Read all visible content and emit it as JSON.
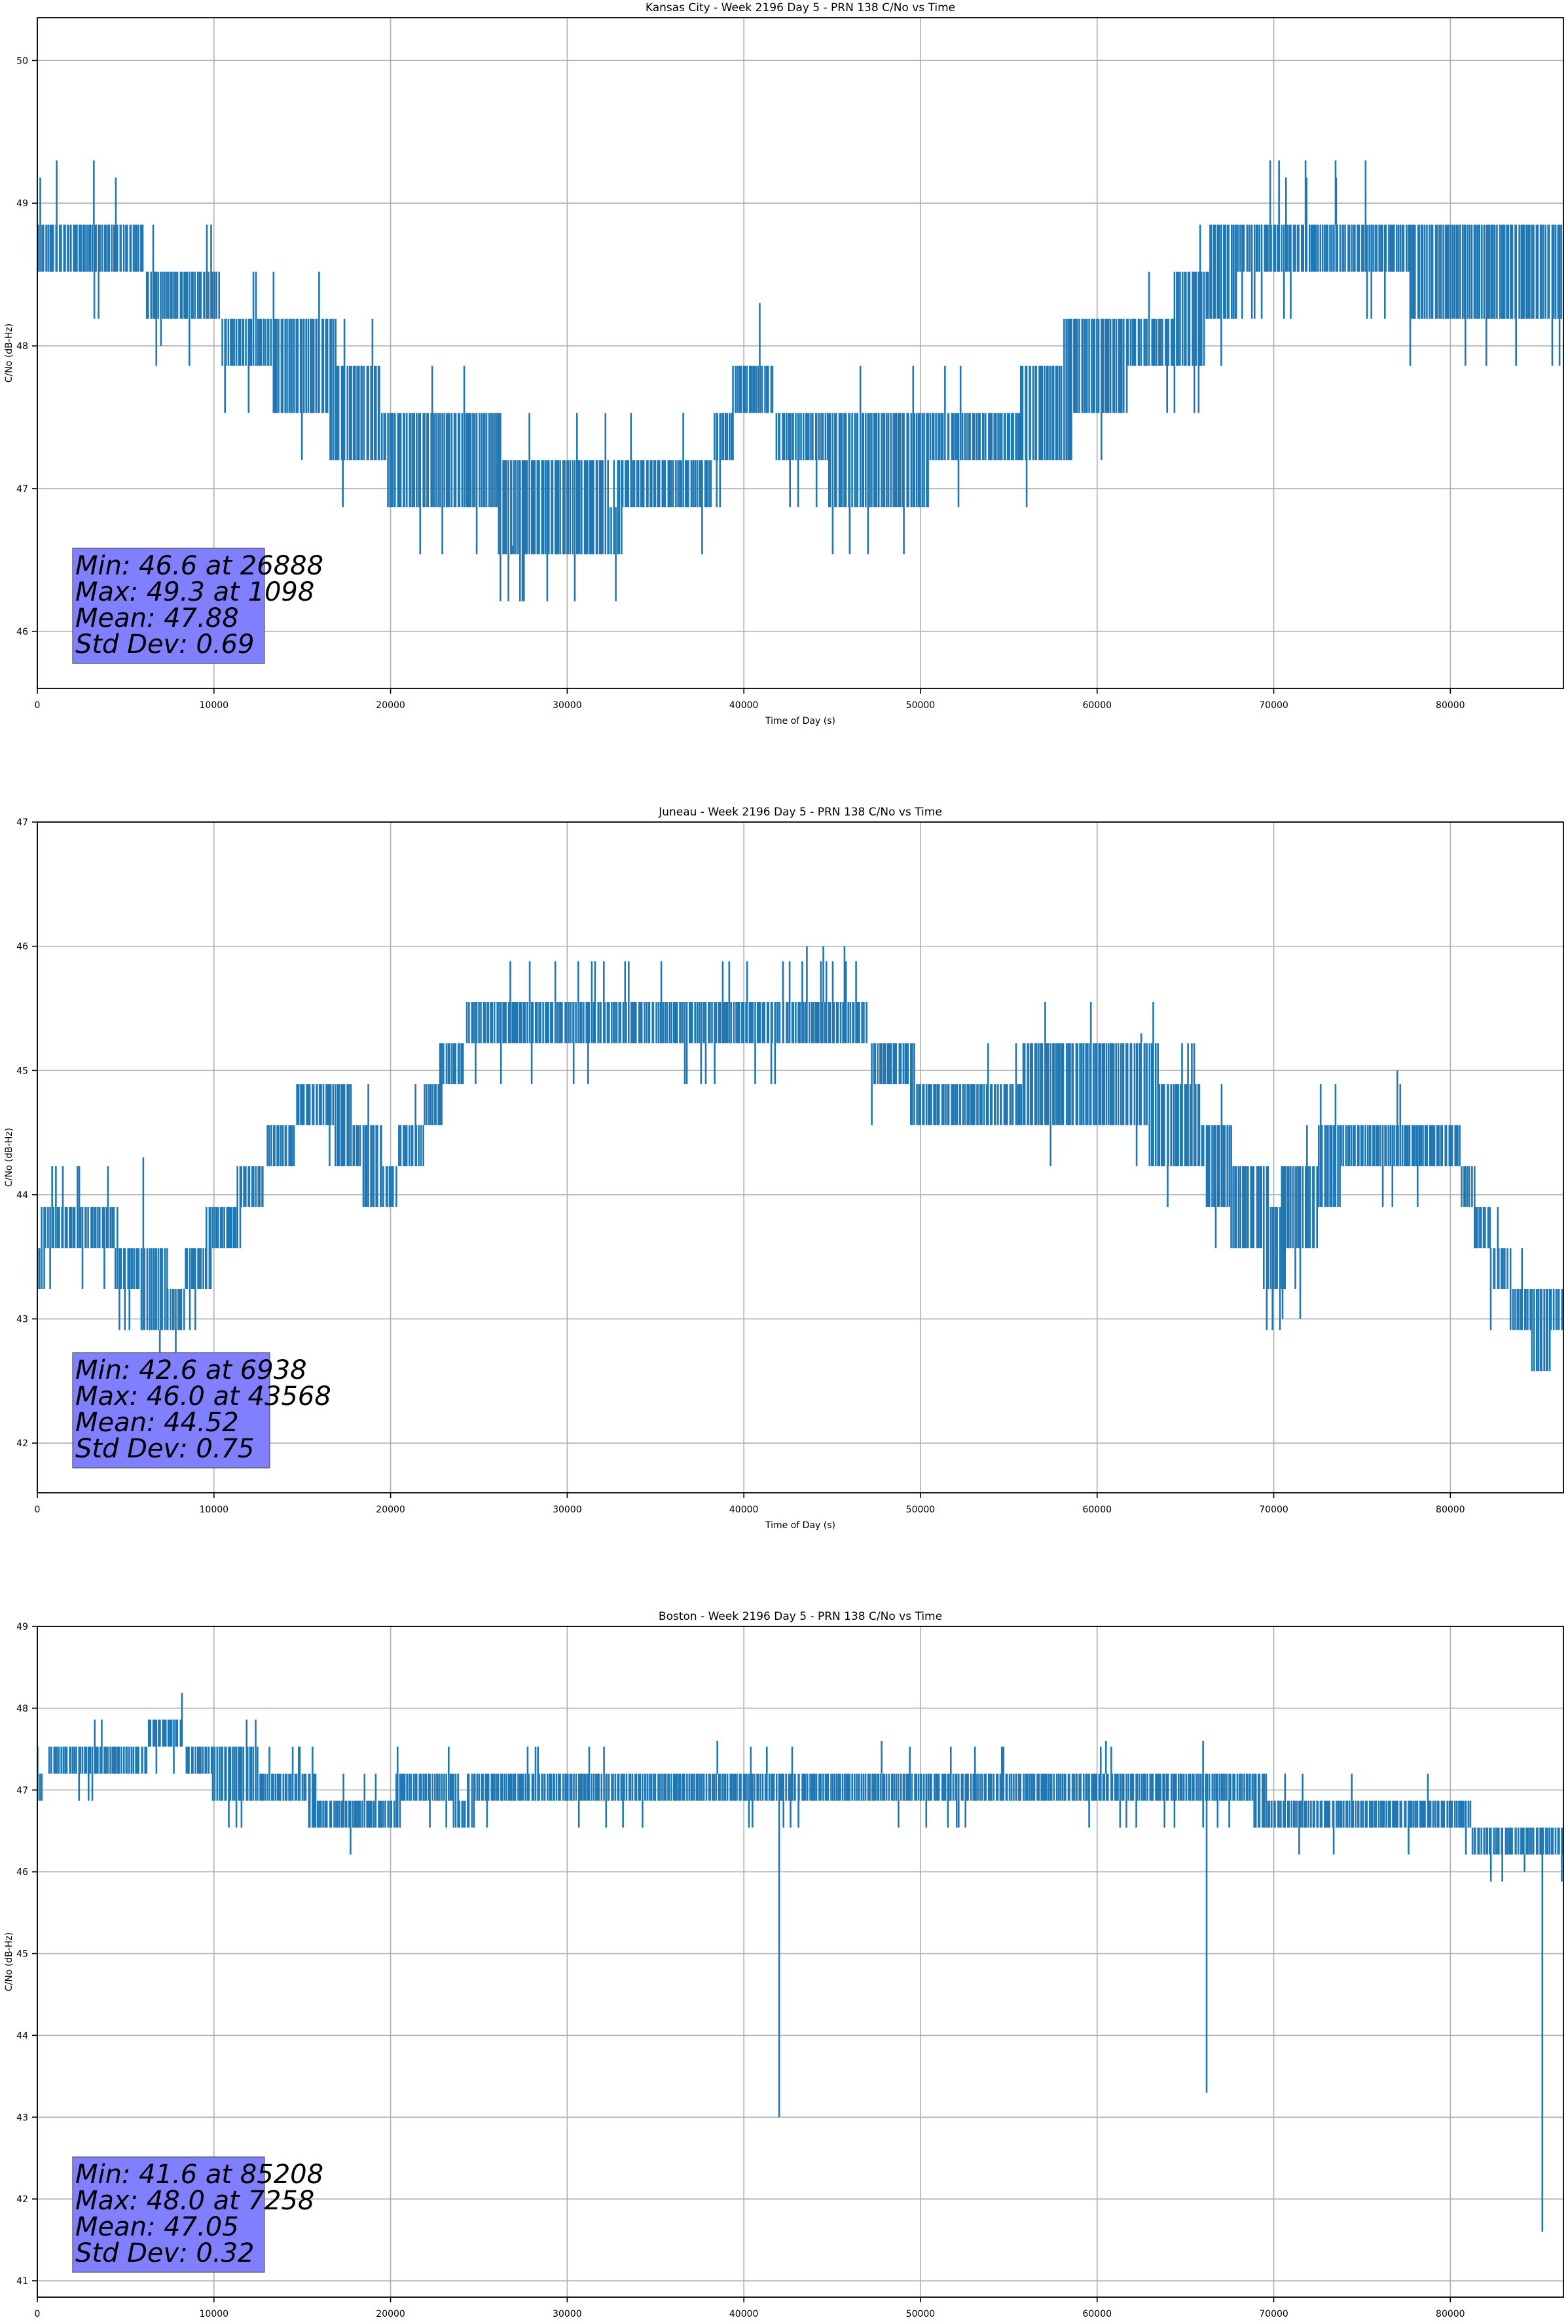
{
  "chart_data": [
    {
      "type": "line",
      "title": "Kansas City - Week 2196 Day 5 - PRN 138 C/No vs Time",
      "xlabel": "Time of Day (s)",
      "ylabel": "C/No (dB-Hz)",
      "xlim": [
        0,
        86400
      ],
      "ylim": [
        45.6,
        50.3
      ],
      "xticks": [
        0,
        10000,
        20000,
        30000,
        40000,
        50000,
        60000,
        70000,
        80000
      ],
      "yticks": [
        46,
        47,
        48,
        49,
        50
      ],
      "grid": true,
      "color": "#1f77b4",
      "series_profile": {
        "x": [
          0,
          4000,
          6500,
          9000,
          10500,
          14000,
          17000,
          20000,
          23000,
          27000,
          30000,
          32500,
          35000,
          38000,
          40500,
          42000,
          45000,
          50000,
          55000,
          58000,
          61000,
          64000,
          66000,
          67500,
          70000,
          75000,
          78000,
          82000,
          86400
        ],
        "low": [
          48.6,
          48.6,
          48.3,
          48.3,
          48.0,
          47.6,
          47.3,
          47.0,
          47.0,
          46.6,
          46.6,
          46.6,
          47.0,
          47.0,
          47.6,
          47.3,
          47.0,
          47.0,
          47.3,
          47.3,
          47.6,
          48.0,
          48.0,
          48.3,
          48.6,
          48.6,
          48.3,
          48.3,
          48.3
        ],
        "high": [
          49.0,
          49.0,
          48.6,
          48.6,
          48.3,
          48.3,
          48.0,
          47.6,
          47.6,
          47.3,
          47.3,
          47.0,
          47.3,
          47.3,
          48.0,
          47.6,
          47.6,
          47.6,
          47.6,
          48.0,
          48.3,
          48.3,
          48.6,
          49.0,
          49.0,
          49.0,
          49.0,
          49.0,
          49.0
        ]
      },
      "spikes": [
        {
          "x": 1098,
          "y": 49.3
        },
        {
          "x": 3200,
          "y": 49.3
        },
        {
          "x": 40900,
          "y": 48.3
        },
        {
          "x": 69800,
          "y": 49.3
        },
        {
          "x": 70300,
          "y": 49.3
        },
        {
          "x": 71800,
          "y": 49.3
        },
        {
          "x": 73500,
          "y": 49.3
        },
        {
          "x": 75200,
          "y": 49.3
        }
      ],
      "dips": [
        {
          "x": 7000,
          "y": 48.0
        },
        {
          "x": 26888,
          "y": 46.6
        }
      ],
      "stats_box": [
        "Min: 46.6 at 26888",
        "Max: 49.3 at 1098",
        "Mean: 47.88",
        "Std Dev: 0.69"
      ]
    },
    {
      "type": "line",
      "title": "Juneau - Week 2196 Day 5 - PRN 138 C/No vs Time",
      "xlabel": "Time of Day (s)",
      "ylabel": "C/No (dB-Hz)",
      "xlim": [
        0,
        86400
      ],
      "ylim": [
        41.6,
        47.0
      ],
      "xticks": [
        0,
        10000,
        20000,
        30000,
        40000,
        50000,
        60000,
        70000,
        80000
      ],
      "yticks": [
        42,
        43,
        44,
        45,
        46,
        47
      ],
      "grid": true,
      "color": "#1f77b4",
      "series_profile": {
        "x": [
          0,
          1000,
          3000,
          5000,
          6000,
          8000,
          9000,
          11000,
          12500,
          14000,
          16000,
          18500,
          20000,
          21500,
          22500,
          24000,
          25000,
          30000,
          35000,
          40000,
          45000,
          47500,
          50000,
          55000,
          60000,
          64000,
          66500,
          68000,
          70000,
          72000,
          73500,
          75000,
          80000,
          81500,
          82500,
          83500,
          85000,
          86400
        ],
        "low": [
          43.3,
          43.6,
          43.6,
          43.3,
          43.0,
          43.0,
          43.3,
          43.6,
          44.0,
          44.3,
          44.6,
          44.0,
          44.0,
          44.3,
          44.6,
          45.0,
          45.3,
          45.3,
          45.3,
          45.3,
          45.3,
          45.0,
          44.6,
          44.6,
          44.6,
          44.3,
          44.0,
          43.6,
          43.3,
          43.6,
          44.0,
          44.3,
          44.3,
          43.6,
          43.3,
          43.0,
          42.6,
          43.0
        ],
        "high": [
          43.6,
          44.0,
          44.0,
          43.6,
          43.6,
          43.3,
          43.6,
          44.0,
          44.3,
          44.6,
          45.0,
          44.6,
          44.3,
          44.6,
          45.0,
          45.3,
          45.6,
          45.6,
          45.6,
          45.6,
          45.6,
          45.3,
          45.0,
          45.0,
          45.3,
          45.0,
          44.6,
          44.3,
          44.0,
          44.3,
          44.6,
          44.6,
          44.6,
          44.0,
          43.6,
          43.3,
          43.3,
          43.3
        ]
      },
      "spikes": [
        {
          "x": 6000,
          "y": 44.3
        },
        {
          "x": 43568,
          "y": 46.0
        },
        {
          "x": 44500,
          "y": 46.0
        },
        {
          "x": 45700,
          "y": 46.0
        },
        {
          "x": 62500,
          "y": 45.3
        },
        {
          "x": 77000,
          "y": 45.0
        }
      ],
      "dips": [
        {
          "x": 6938,
          "y": 42.6
        },
        {
          "x": 70500,
          "y": 43.0
        },
        {
          "x": 71500,
          "y": 43.0
        }
      ],
      "stats_box": [
        "Min: 42.6 at 6938",
        "Max: 46.0 at 43568",
        "Mean: 44.52",
        "Std Dev: 0.75"
      ]
    },
    {
      "type": "line",
      "title": "Boston - Week 2196 Day 5 - PRN 138 C/No vs Time",
      "xlabel": "Time of Day (s)",
      "ylabel": "C/No (dB-Hz)",
      "xlim": [
        0,
        86400
      ],
      "ylim": [
        40.8,
        49.0
      ],
      "xticks": [
        0,
        10000,
        20000,
        30000,
        40000,
        50000,
        60000,
        70000,
        80000
      ],
      "yticks": [
        41,
        42,
        43,
        44,
        45,
        46,
        47,
        48,
        49
      ],
      "grid": true,
      "color": "#1f77b4",
      "series_profile": {
        "x": [
          0,
          3000,
          6000,
          7258,
          8500,
          10000,
          13000,
          16000,
          20000,
          22000,
          24000,
          27000,
          30000,
          35000,
          40000,
          45000,
          50000,
          55000,
          60000,
          65000,
          70000,
          75000,
          80000,
          81500,
          84000,
          86400
        ],
        "low": [
          47.0,
          47.3,
          47.3,
          47.6,
          47.3,
          47.0,
          47.0,
          46.6,
          46.6,
          47.0,
          46.6,
          47.0,
          47.0,
          47.0,
          47.0,
          47.0,
          47.0,
          47.0,
          47.0,
          47.0,
          46.6,
          46.6,
          46.6,
          46.3,
          46.3,
          46.3
        ],
        "high": [
          47.3,
          47.6,
          47.6,
          48.0,
          47.6,
          47.6,
          47.3,
          47.0,
          47.0,
          47.3,
          47.0,
          47.3,
          47.3,
          47.3,
          47.3,
          47.3,
          47.3,
          47.3,
          47.3,
          47.3,
          47.0,
          47.0,
          47.0,
          46.6,
          46.6,
          46.6
        ]
      },
      "spikes": [
        {
          "x": 38500,
          "y": 47.6
        },
        {
          "x": 47800,
          "y": 47.6
        },
        {
          "x": 60500,
          "y": 47.6
        },
        {
          "x": 66000,
          "y": 47.6
        }
      ],
      "dips": [
        {
          "x": 42000,
          "y": 43.0
        },
        {
          "x": 66200,
          "y": 43.3
        },
        {
          "x": 85208,
          "y": 41.6
        },
        {
          "x": 84200,
          "y": 46.0
        }
      ],
      "stats_box": [
        "Min: 41.6 at 85208",
        "Max: 48.0 at 7258",
        "Mean: 47.05",
        "Std Dev: 0.32"
      ]
    }
  ]
}
